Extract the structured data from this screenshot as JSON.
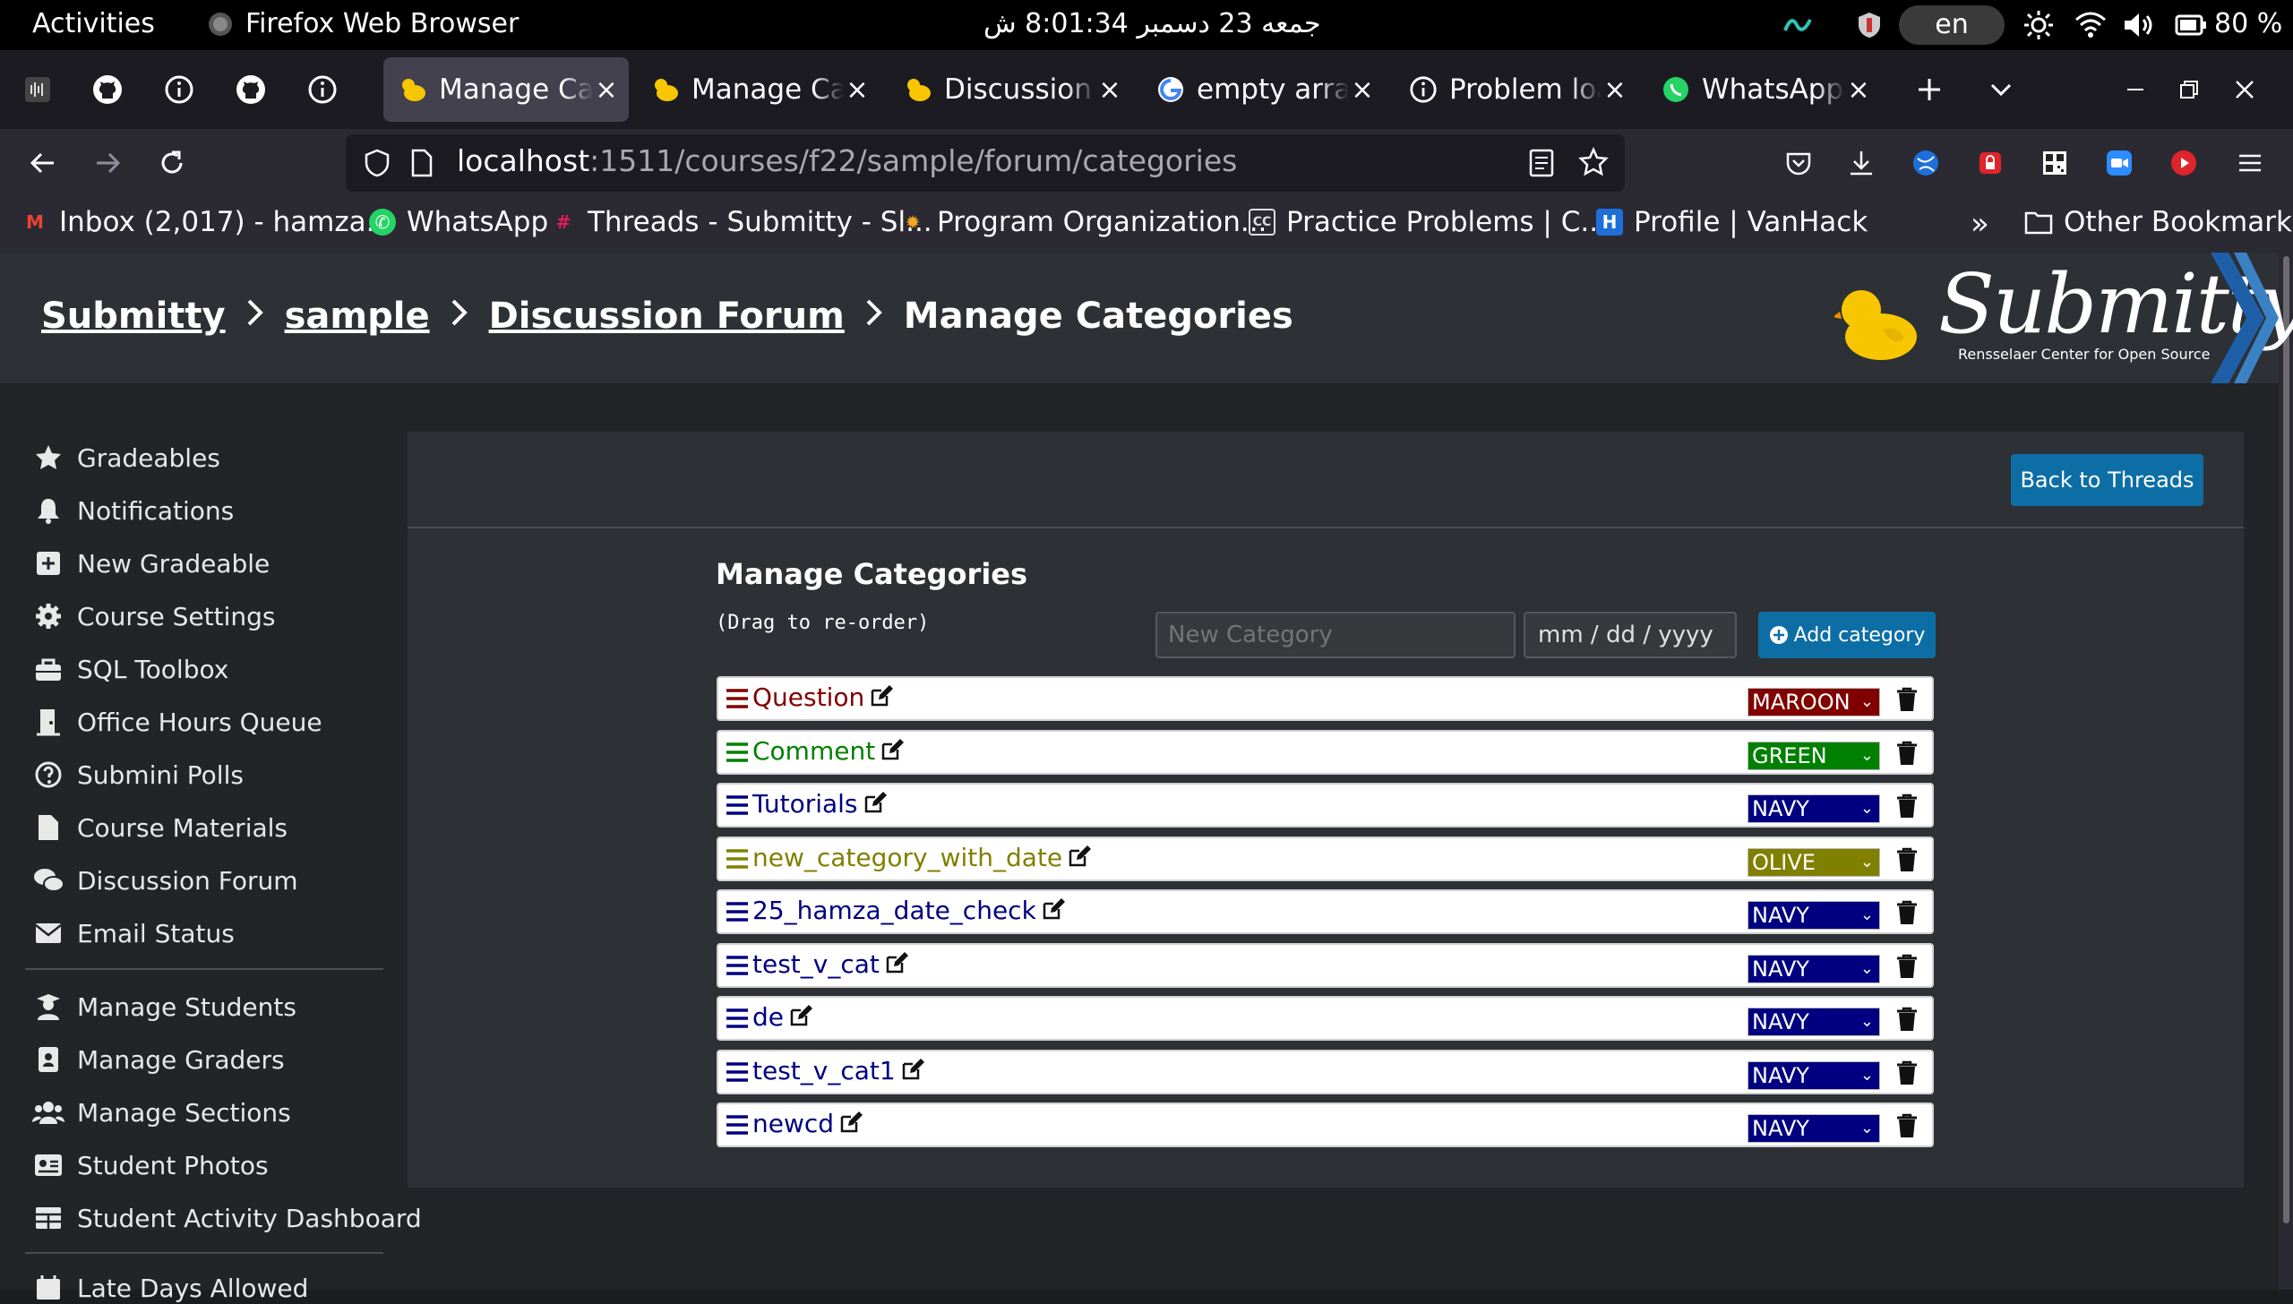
{
  "system_bar": {
    "activities": "Activities",
    "app_name": "Firefox Web Browser",
    "clock": "جمعه 23 دسمبر 8:01:34 ش",
    "language": "en",
    "battery": "80 %"
  },
  "tabs": [
    {
      "title": "Manage Categories",
      "active": true
    },
    {
      "title": "Manage Categories",
      "active": false
    },
    {
      "title": "Discussion Forum",
      "active": false
    },
    {
      "title": "empty array",
      "active": false
    },
    {
      "title": "Problem loading page",
      "active": false
    },
    {
      "title": "WhatsApp",
      "active": false
    }
  ],
  "url": {
    "host": "localhost",
    "path": ":1511/courses/f22/sample/forum/categories"
  },
  "bookmarks": [
    {
      "label": "Inbox (2,017) - hamza...",
      "icon": "gmail-icon",
      "color": "#ea4335",
      "glyph": "M"
    },
    {
      "label": "WhatsApp",
      "icon": "whatsapp-icon",
      "color": "#25d366",
      "glyph": "✆"
    },
    {
      "label": "Threads - Submitty - Sl...",
      "icon": "slack-icon",
      "color": "#e01e5a",
      "glyph": "#"
    },
    {
      "label": "Program Organization...",
      "icon": "gear-bookmark-icon",
      "color": "#f5a623",
      "glyph": "✹"
    },
    {
      "label": "Practice Problems | C...",
      "icon": "cc-icon",
      "color": "#ffffff",
      "glyph": "CC"
    },
    {
      "label": "Profile | VanHack",
      "icon": "vanhack-icon",
      "color": "#1e6fd9",
      "glyph": "H"
    }
  ],
  "other_bookmarks": "Other Bookmarks",
  "breadcrumb": {
    "items": [
      "Submitty",
      "sample",
      "Discussion Forum"
    ],
    "current": "Manage Categories"
  },
  "logo": {
    "text": "Submitty",
    "subtitle": "Rensselaer Center for Open Source"
  },
  "sidebar": {
    "group1": [
      {
        "label": "Gradeables",
        "icon": "star-icon"
      },
      {
        "label": "Notifications",
        "icon": "bell-icon"
      },
      {
        "label": "New Gradeable",
        "icon": "plus-square-icon"
      },
      {
        "label": "Course Settings",
        "icon": "gear-icon"
      },
      {
        "label": "SQL Toolbox",
        "icon": "toolbox-icon"
      },
      {
        "label": "Office Hours Queue",
        "icon": "door-icon"
      },
      {
        "label": "Submini Polls",
        "icon": "question-circle-icon"
      },
      {
        "label": "Course Materials",
        "icon": "file-icon"
      },
      {
        "label": "Discussion Forum",
        "icon": "comments-icon"
      },
      {
        "label": "Email Status",
        "icon": "envelope-icon"
      }
    ],
    "group2": [
      {
        "label": "Manage Students",
        "icon": "user-graduate-icon"
      },
      {
        "label": "Manage Graders",
        "icon": "id-badge-icon"
      },
      {
        "label": "Manage Sections",
        "icon": "users-icon"
      },
      {
        "label": "Student Photos",
        "icon": "id-card-icon"
      },
      {
        "label": "Student Activity Dashboard",
        "icon": "table-icon"
      }
    ],
    "group3": [
      {
        "label": "Late Days Allowed",
        "icon": "calendar-icon"
      }
    ]
  },
  "content": {
    "back_button": "Back to Threads",
    "title": "Manage Categories",
    "drag_note": "(Drag to re-order)",
    "new_category_placeholder": "New Category",
    "date_placeholder": "mm / dd / yyyy",
    "add_button": "Add category"
  },
  "colors": {
    "MAROON": "#800000",
    "GREEN": "#008000",
    "NAVY": "#000080",
    "OLIVE": "#808000",
    "accent": "#0d6ea6"
  },
  "categories": [
    {
      "name": "Question",
      "color": "MAROON"
    },
    {
      "name": "Comment",
      "color": "GREEN"
    },
    {
      "name": "Tutorials",
      "color": "NAVY"
    },
    {
      "name": "new_category_with_date",
      "color": "OLIVE"
    },
    {
      "name": "25_hamza_date_check",
      "color": "NAVY"
    },
    {
      "name": "test_v_cat",
      "color": "NAVY"
    },
    {
      "name": "de",
      "color": "NAVY"
    },
    {
      "name": "test_v_cat1",
      "color": "NAVY"
    },
    {
      "name": "newcd",
      "color": "NAVY"
    }
  ]
}
